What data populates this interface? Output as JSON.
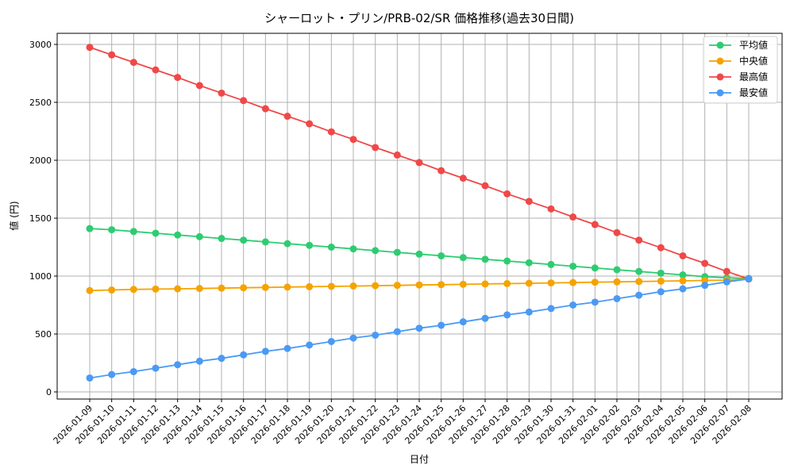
{
  "chart_data": {
    "type": "line",
    "title": "シャーロット・プリン/PRB-02/SR 価格推移(過去30日間)",
    "xlabel": "日付",
    "ylabel": "値 (円)",
    "ylim": [
      0,
      3000
    ],
    "yticks": [
      0,
      500,
      1000,
      1500,
      2000,
      2500,
      3000
    ],
    "grid": true,
    "legend_position": "top-right",
    "categories": [
      "2026-01-09",
      "2026-01-10",
      "2026-01-11",
      "2026-01-12",
      "2026-01-13",
      "2026-01-14",
      "2026-01-15",
      "2026-01-16",
      "2026-01-17",
      "2026-01-18",
      "2026-01-19",
      "2026-01-20",
      "2026-01-21",
      "2026-01-22",
      "2026-01-23",
      "2026-01-24",
      "2026-01-25",
      "2026-01-26",
      "2026-01-27",
      "2026-01-28",
      "2026-01-29",
      "2026-01-30",
      "2026-01-31",
      "2026-02-01",
      "2026-02-02",
      "2026-02-03",
      "2026-02-04",
      "2026-02-05",
      "2026-02-06",
      "2026-02-07",
      "2026-02-08"
    ],
    "series": [
      {
        "name": "平均値",
        "color": "#2ecc71",
        "values": [
          1410,
          1400,
          1385,
          1370,
          1355,
          1340,
          1325,
          1310,
          1295,
          1280,
          1265,
          1250,
          1235,
          1220,
          1205,
          1190,
          1175,
          1160,
          1145,
          1130,
          1115,
          1100,
          1085,
          1070,
          1055,
          1040,
          1025,
          1010,
          995,
          985,
          980
        ]
      },
      {
        "name": "中央値",
        "color": "#f5a300",
        "values": [
          875,
          880,
          885,
          888,
          890,
          893,
          896,
          899,
          902,
          905,
          908,
          911,
          914,
          917,
          920,
          923,
          926,
          929,
          932,
          935,
          938,
          941,
          944,
          947,
          950,
          953,
          956,
          959,
          962,
          965,
          975
        ]
      },
      {
        "name": "最高値",
        "color": "#f04848",
        "values": [
          2975,
          2910,
          2845,
          2780,
          2715,
          2645,
          2580,
          2515,
          2445,
          2380,
          2315,
          2245,
          2180,
          2110,
          2045,
          1980,
          1910,
          1845,
          1780,
          1710,
          1645,
          1580,
          1510,
          1445,
          1375,
          1310,
          1245,
          1175,
          1110,
          1040,
          975
        ]
      },
      {
        "name": "最安値",
        "color": "#4a9af5",
        "values": [
          120,
          150,
          175,
          205,
          235,
          265,
          290,
          320,
          350,
          375,
          405,
          435,
          465,
          490,
          520,
          550,
          575,
          605,
          635,
          665,
          690,
          720,
          750,
          775,
          805,
          835,
          865,
          890,
          920,
          950,
          975
        ]
      }
    ]
  }
}
